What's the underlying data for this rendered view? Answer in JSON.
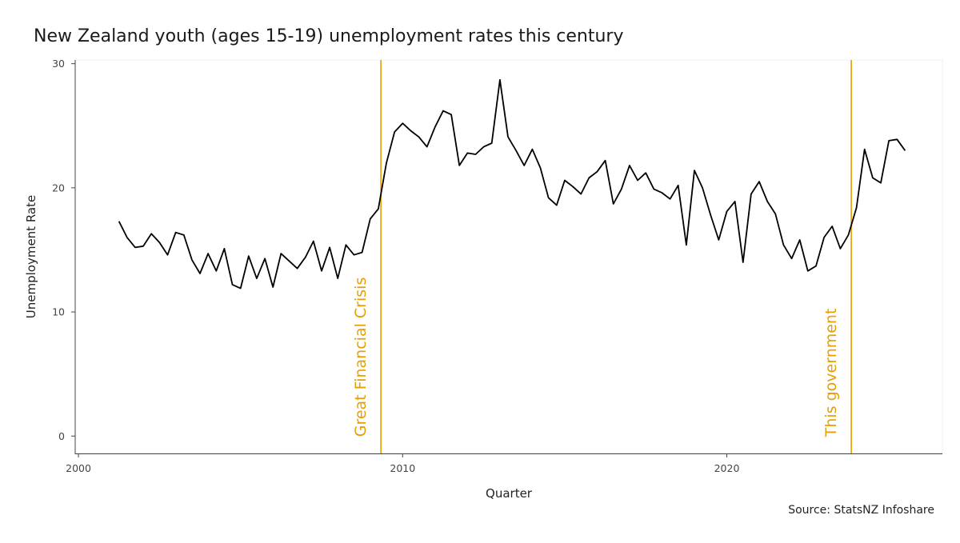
{
  "chart_data": {
    "type": "line",
    "title": "New Zealand youth (ages 15-19) unemployment rates this century",
    "xlabel": "Quarter",
    "ylabel": "Unemployment Rate",
    "caption": "Source: StatsNZ Infoshare",
    "xlim": [
      1999.9,
      2026.65
    ],
    "ylim": [
      -1.4,
      30.3
    ],
    "x_ticks": [
      2000,
      2010,
      2020
    ],
    "y_ticks": [
      0,
      10,
      20,
      30
    ],
    "grid": false,
    "line_color": "#000000",
    "annotation_color": "#E69F00",
    "annotations": [
      {
        "x": 2009.33,
        "label": "Great Financial Crisis"
      },
      {
        "x": 2023.84,
        "label": "This government"
      }
    ],
    "series": [
      {
        "x": [
          2001.25,
          2001.5,
          2001.75,
          2002,
          2002.25,
          2002.5,
          2002.75,
          2003,
          2003.25,
          2003.5,
          2003.75,
          2004,
          2004.25,
          2004.5,
          2004.75,
          2005,
          2005.25,
          2005.5,
          2005.75,
          2006,
          2006.25,
          2006.5,
          2006.75,
          2007,
          2007.25,
          2007.5,
          2007.75,
          2008,
          2008.25,
          2008.5,
          2008.75,
          2009,
          2009.25,
          2009.5,
          2009.75,
          2010,
          2010.25,
          2010.5,
          2010.75,
          2011,
          2011.25,
          2011.5,
          2011.75,
          2012,
          2012.25,
          2012.5,
          2012.75,
          2013,
          2013.25,
          2013.5,
          2013.75,
          2014,
          2014.25,
          2014.5,
          2014.75,
          2015,
          2015.25,
          2015.5,
          2015.75,
          2016,
          2016.25,
          2016.5,
          2016.75,
          2017,
          2017.25,
          2017.5,
          2017.75,
          2018,
          2018.25,
          2018.5,
          2018.75,
          2019,
          2019.25,
          2019.5,
          2019.75,
          2020,
          2020.25,
          2020.5,
          2020.75,
          2021,
          2021.25,
          2021.5,
          2021.75,
          2022,
          2022.25,
          2022.5,
          2022.75,
          2023,
          2023.25,
          2023.5,
          2023.75,
          2024,
          2024.25,
          2024.5,
          2024.75,
          2025,
          2025.25,
          2025.5
        ],
        "values": [
          17.3,
          16,
          15.2,
          15.3,
          16.3,
          15.6,
          14.6,
          16.4,
          16.2,
          14.2,
          13.1,
          14.7,
          13.3,
          15.1,
          12.2,
          11.9,
          14.5,
          12.7,
          14.3,
          12,
          14.7,
          14.1,
          13.5,
          14.4,
          15.7,
          13.3,
          15.2,
          12.7,
          15.4,
          14.6,
          14.8,
          17.5,
          18.3,
          22,
          24.5,
          25.2,
          24.6,
          24.1,
          23.3,
          24.9,
          26.2,
          25.9,
          21.8,
          22.8,
          22.7,
          23.3,
          23.6,
          28.7,
          24.1,
          23,
          21.8,
          23.1,
          21.6,
          19.2,
          18.6,
          20.6,
          20.1,
          19.5,
          20.8,
          21.3,
          22.2,
          18.7,
          19.9,
          21.8,
          20.6,
          21.2,
          19.9,
          19.6,
          19.1,
          20.2,
          15.4,
          21.4,
          20,
          17.8,
          15.8,
          18.1,
          18.9,
          14,
          19.5,
          20.5,
          18.9,
          17.9,
          15.4,
          14.3,
          15.8,
          13.3,
          13.7,
          16,
          16.9,
          15.1,
          16.2,
          18.4,
          23.1,
          20.8,
          20.4,
          23.8,
          23.9,
          23
        ]
      }
    ]
  }
}
